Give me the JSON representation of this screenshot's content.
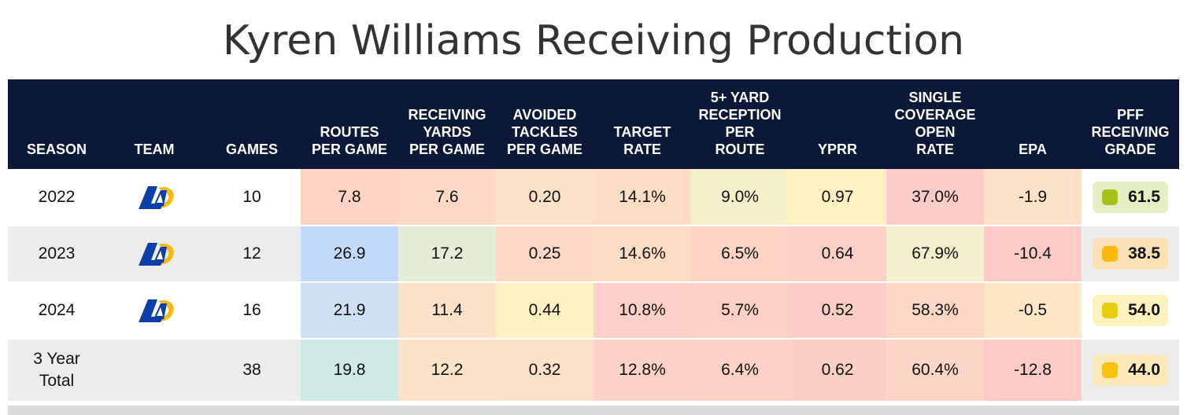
{
  "title": "Kyren Williams Receiving Production",
  "headers": {
    "season": "SEASON",
    "team": "TEAM",
    "games": "GAMES",
    "routes": [
      "ROUTES",
      "PER GAME"
    ],
    "rec_yards": [
      "RECEIVING",
      "YARDS",
      "PER GAME"
    ],
    "avoided": [
      "AVOIDED",
      "TACKLES",
      "PER GAME"
    ],
    "target": [
      "TARGET",
      "RATE"
    ],
    "five_plus": [
      "5+ YARD",
      "RECEPTION",
      "PER",
      "ROUTE"
    ],
    "yprr": "YPRR",
    "single_cov": [
      "SINGLE",
      "COVERAGE",
      "OPEN",
      "RATE"
    ],
    "epa": "EPA",
    "pff": [
      "PFF",
      "RECEIVING",
      "GRADE"
    ]
  },
  "rows": [
    {
      "season": "2022",
      "team_logo": "la-rams-logo",
      "games": "10",
      "routes": "7.8",
      "rec_yards": "7.6",
      "avoided": "0.20",
      "target": "14.1%",
      "five_plus": "9.0%",
      "yprr": "0.97",
      "single_cov": "37.0%",
      "epa": "-1.9",
      "pff": "61.5"
    },
    {
      "season": "2023",
      "team_logo": "la-rams-logo",
      "games": "12",
      "routes": "26.9",
      "rec_yards": "17.2",
      "avoided": "0.25",
      "target": "14.6%",
      "five_plus": "6.5%",
      "yprr": "0.64",
      "single_cov": "67.9%",
      "epa": "-10.4",
      "pff": "38.5"
    },
    {
      "season": "2024",
      "team_logo": "la-rams-logo",
      "games": "16",
      "routes": "21.9",
      "rec_yards": "11.4",
      "avoided": "0.44",
      "target": "10.8%",
      "five_plus": "5.7%",
      "yprr": "0.52",
      "single_cov": "58.3%",
      "epa": "-0.5",
      "pff": "54.0"
    },
    {
      "season": "3 Year Total",
      "team_logo": "",
      "games": "38",
      "routes": "19.8",
      "rec_yards": "12.2",
      "avoided": "0.32",
      "target": "12.8%",
      "five_plus": "6.4%",
      "yprr": "0.62",
      "single_cov": "60.4%",
      "epa": "-12.8",
      "pff": "44.0"
    }
  ],
  "colors": {
    "header_bg": "#0c1838",
    "row0": {
      "routes": "#fdd3c6",
      "rec_yards": "#fdd8c6",
      "avoided": "#fde1c8",
      "target": "#fdddc6",
      "five_plus": "#f6efcb",
      "yprr": "#fdf1c2",
      "single_cov": "#fcccc8",
      "epa": "#fde1c8",
      "pff_bg": "#e4efc4",
      "pff_dot": "#a6c21a"
    },
    "row1": {
      "routes": "#c2d9fb",
      "rec_yards": "#e2ecd6",
      "avoided": "#fdd8c6",
      "target": "#fddcc6",
      "five_plus": "#fdd3c6",
      "yprr": "#fdd0c6",
      "single_cov": "#f2f0cc",
      "epa": "#fccbc8",
      "pff_bg": "#fde0b6",
      "pff_dot": "#fbb70a"
    },
    "row2": {
      "routes": "#cfe0f2",
      "rec_yards": "#fde1c8",
      "avoided": "#fdf0c2",
      "target": "#fccfc8",
      "five_plus": "#fdd0c6",
      "yprr": "#fcccc6",
      "single_cov": "#fdd6c6",
      "epa": "#fde6c6",
      "pff_bg": "#fbf2bd",
      "pff_dot": "#e3cf0e"
    },
    "row3": {
      "routes": "#cee8e4",
      "rec_yards": "#fde1c8",
      "avoided": "#fde0c8",
      "target": "#fcd1c8",
      "five_plus": "#fdd1c6",
      "yprr": "#fccfc6",
      "single_cov": "#fdd5c6",
      "epa": "#fccbc8",
      "pff_bg": "#fde8b9",
      "pff_dot": "#f9c10b"
    }
  }
}
